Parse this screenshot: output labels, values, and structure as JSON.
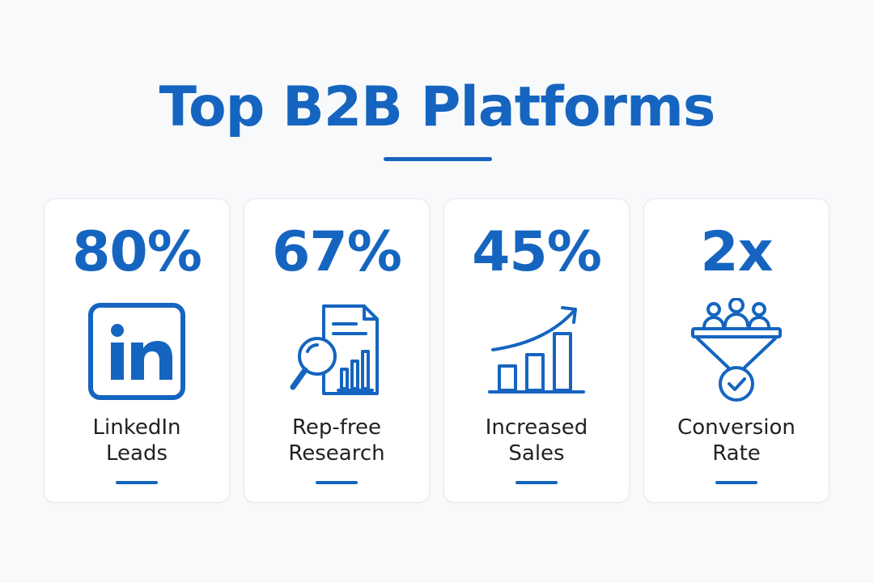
{
  "header": {
    "title": "Top B2B Platforms"
  },
  "colors": {
    "accent": "#1565c0",
    "background": "#f8f9fb",
    "card": "#ffffff",
    "text": "#222222"
  },
  "cards": [
    {
      "stat": "80%",
      "icon": "linkedin-icon",
      "label_line1": "LinkedIn",
      "label_line2": "Leads"
    },
    {
      "stat": "67%",
      "icon": "research-document-icon",
      "label_line1": "Rep-free",
      "label_line2": "Research"
    },
    {
      "stat": "45%",
      "icon": "growth-chart-icon",
      "label_line1": "Increased",
      "label_line2": "Sales"
    },
    {
      "stat": "2x",
      "icon": "conversion-funnel-icon",
      "label_line1": "Conversion",
      "label_line2": "Rate"
    }
  ]
}
